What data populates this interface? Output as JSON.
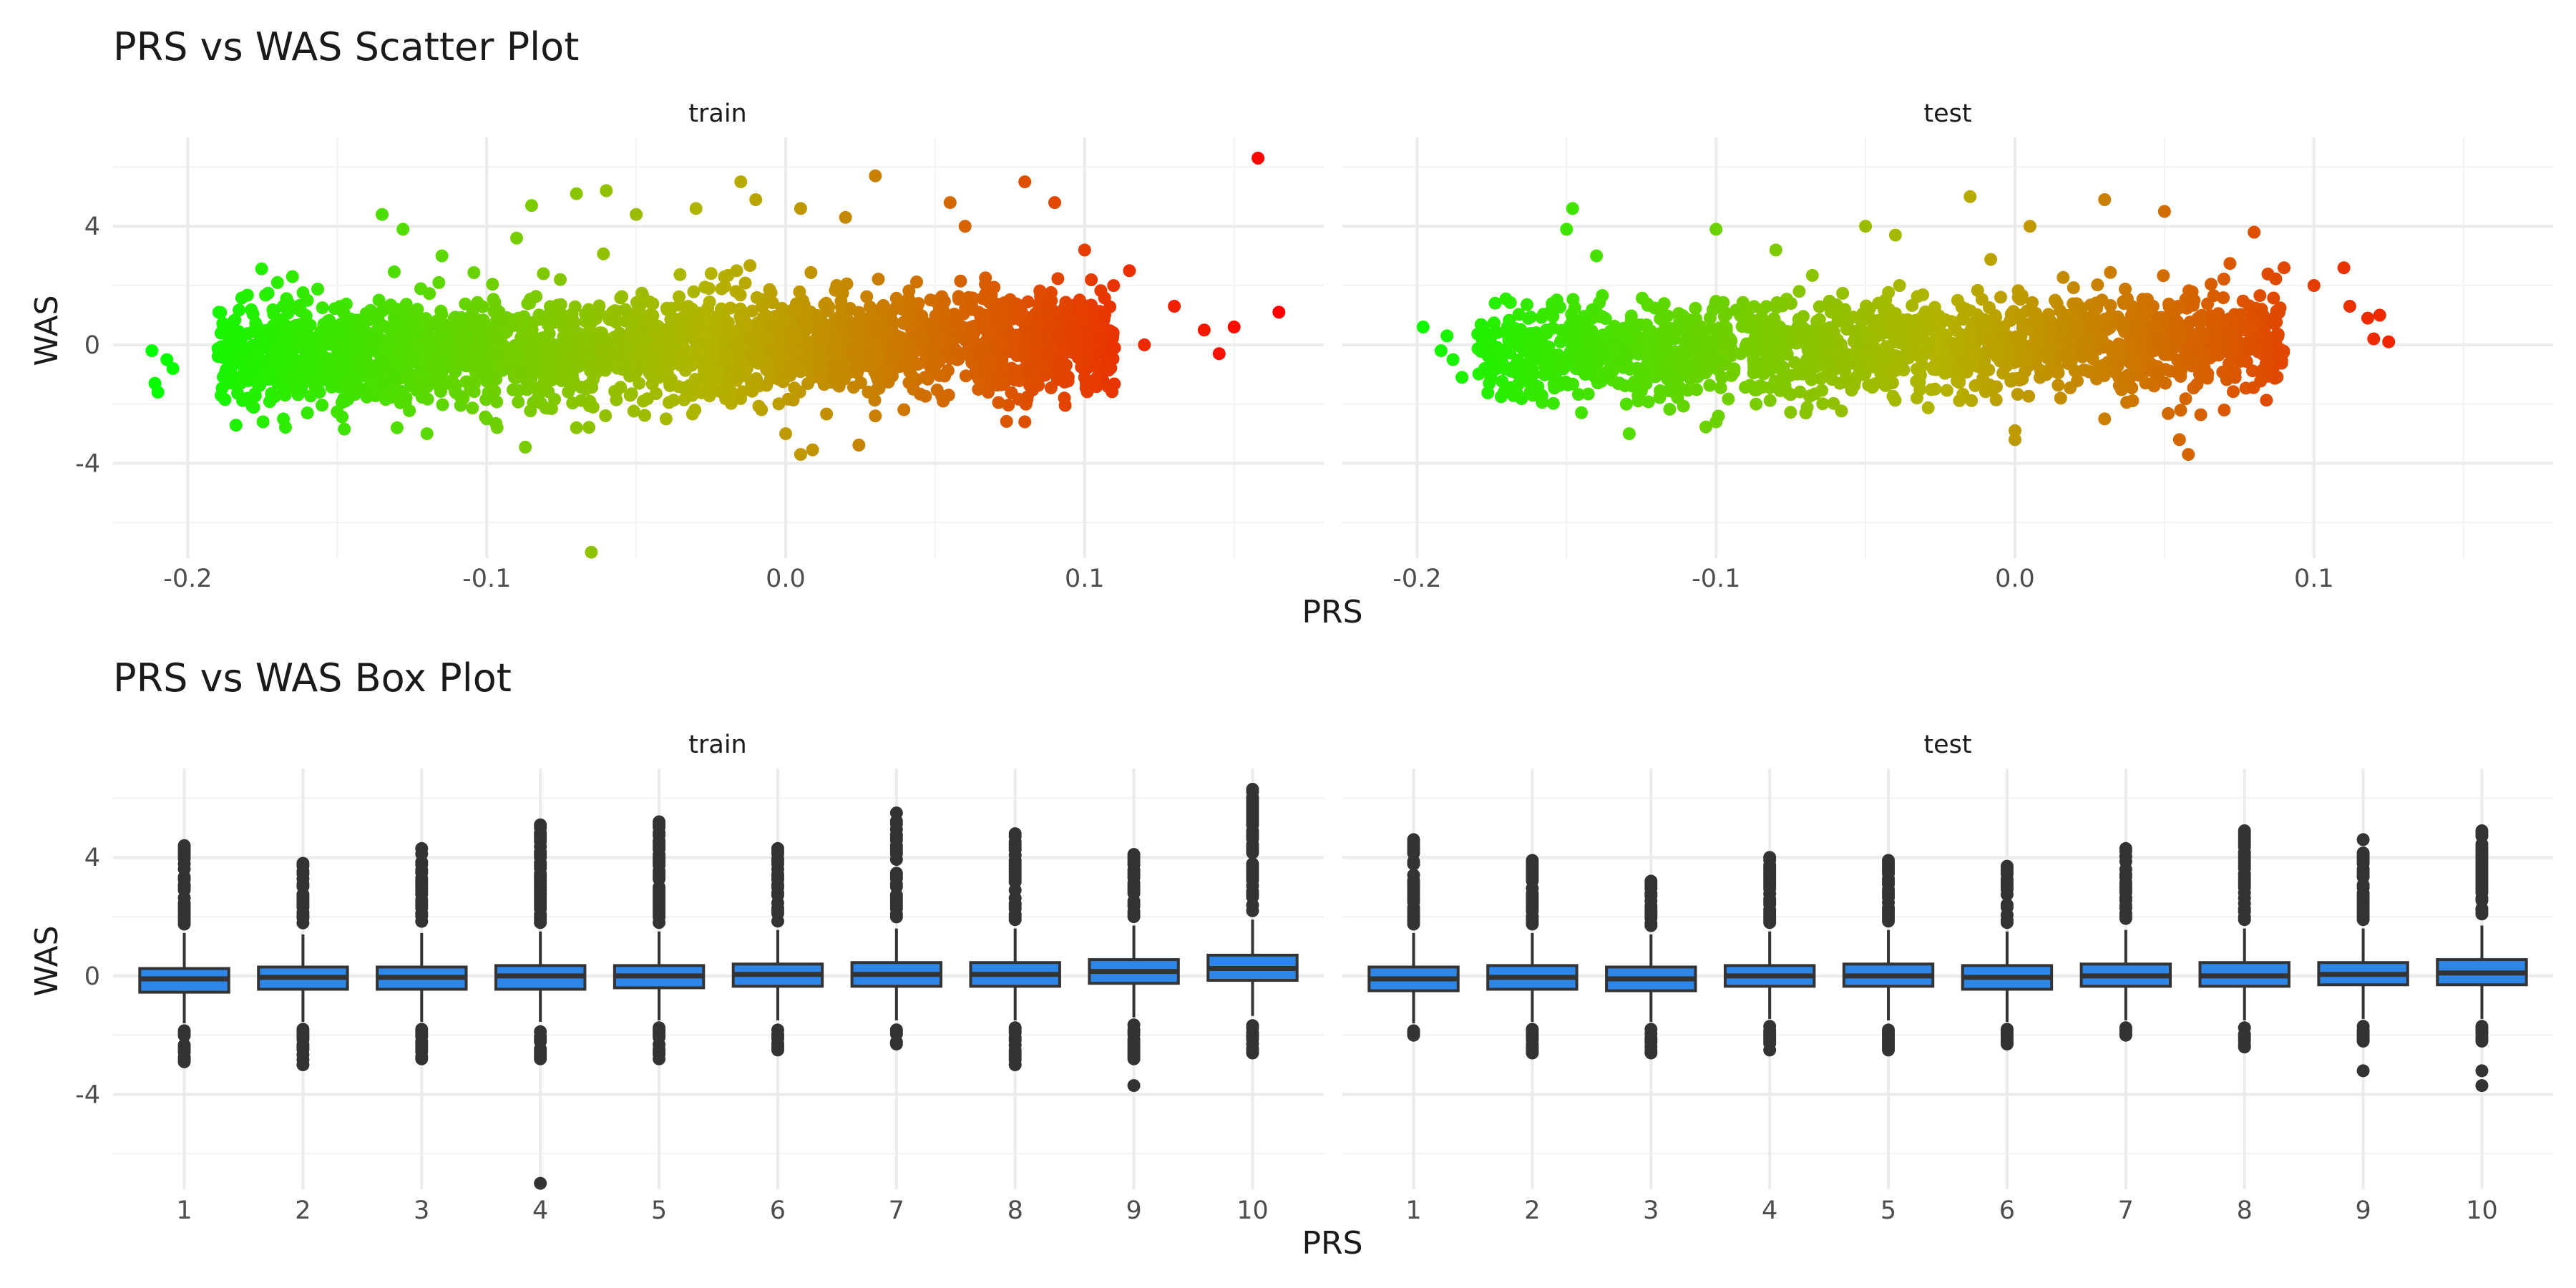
{
  "chart_data": [
    {
      "type": "scatter",
      "title": "PRS vs WAS Scatter Plot",
      "xlabel": "PRS",
      "ylabel": "WAS",
      "facets": [
        "train",
        "test"
      ],
      "xlim": [
        -0.225,
        0.18
      ],
      "ylim": [
        -7.2,
        7.0
      ],
      "x_ticks": [
        -0.2,
        -0.1,
        0.0,
        0.1
      ],
      "x_tick_labels": [
        "-0.2",
        "-0.1",
        "0.0",
        "0.1"
      ],
      "y_ticks": [
        -4,
        0,
        4
      ],
      "y_tick_labels": [
        "-4",
        "0",
        "4"
      ],
      "grid": true,
      "legend": "none",
      "color_scale": {
        "low": "#00ff00",
        "mid": "#b3b300",
        "high": "#ff0000",
        "mapped_to": "PRS"
      },
      "series": [
        {
          "name": "train",
          "cloud": {
            "x_range": [
              -0.19,
              0.11
            ],
            "y_sd": 0.85
          },
          "points": [
            [
              -0.212,
              -0.2
            ],
            [
              -0.211,
              -1.3
            ],
            [
              -0.21,
              -1.6
            ],
            [
              -0.205,
              -0.8
            ],
            [
              -0.207,
              -0.5
            ],
            [
              -0.17,
              2.1
            ],
            [
              -0.165,
              2.3
            ],
            [
              -0.16,
              1.5
            ],
            [
              -0.18,
              -1.8
            ],
            [
              -0.168,
              -2.5
            ],
            [
              -0.135,
              4.4
            ],
            [
              -0.128,
              3.9
            ],
            [
              -0.115,
              3.0
            ],
            [
              -0.09,
              3.6
            ],
            [
              -0.13,
              -2.8
            ],
            [
              -0.12,
              -3.0
            ],
            [
              -0.085,
              4.7
            ],
            [
              -0.07,
              5.1
            ],
            [
              -0.06,
              5.2
            ],
            [
              -0.05,
              4.4
            ],
            [
              -0.03,
              4.6
            ],
            [
              -0.015,
              5.5
            ],
            [
              -0.01,
              4.9
            ],
            [
              0.005,
              4.6
            ],
            [
              0.02,
              4.3
            ],
            [
              0.03,
              5.7
            ],
            [
              0.055,
              4.8
            ],
            [
              0.06,
              4.0
            ],
            [
              0.08,
              5.5
            ],
            [
              0.09,
              4.8
            ],
            [
              0.1,
              3.2
            ],
            [
              0.115,
              2.5
            ],
            [
              0.13,
              1.3
            ],
            [
              0.14,
              0.5
            ],
            [
              0.145,
              -0.3
            ],
            [
              0.15,
              0.6
            ],
            [
              0.158,
              6.3
            ],
            [
              0.165,
              1.1
            ],
            [
              0.11,
              -0.1
            ],
            [
              0.12,
              0.0
            ],
            [
              -0.065,
              -7.0
            ],
            [
              0.005,
              -3.7
            ],
            [
              0.0,
              -3.0
            ],
            [
              -0.07,
              -2.8
            ],
            [
              -0.04,
              -2.5
            ],
            [
              0.03,
              -2.4
            ],
            [
              0.08,
              -2.6
            ],
            [
              0.1,
              -1.1
            ],
            [
              -0.16,
              -2.3
            ],
            [
              -0.1,
              -2.5
            ]
          ]
        },
        {
          "name": "test",
          "cloud": {
            "x_range": [
              -0.18,
              0.09
            ],
            "y_sd": 0.8
          },
          "points": [
            [
              -0.198,
              0.6
            ],
            [
              -0.19,
              0.3
            ],
            [
              -0.188,
              -0.5
            ],
            [
              -0.185,
              -1.1
            ],
            [
              -0.192,
              -0.2
            ],
            [
              -0.148,
              4.6
            ],
            [
              -0.15,
              3.9
            ],
            [
              -0.14,
              3.0
            ],
            [
              -0.1,
              3.9
            ],
            [
              -0.08,
              3.2
            ],
            [
              -0.05,
              4.0
            ],
            [
              -0.04,
              3.7
            ],
            [
              -0.015,
              5.0
            ],
            [
              0.005,
              4.0
            ],
            [
              0.03,
              4.9
            ],
            [
              0.05,
              4.5
            ],
            [
              0.08,
              3.8
            ],
            [
              0.09,
              2.6
            ],
            [
              0.1,
              2.0
            ],
            [
              0.11,
              2.6
            ],
            [
              0.112,
              1.3
            ],
            [
              0.118,
              0.9
            ],
            [
              0.122,
              1.0
            ],
            [
              0.125,
              0.1
            ],
            [
              0.12,
              0.2
            ],
            [
              -0.1,
              -2.6
            ],
            [
              -0.07,
              -2.3
            ],
            [
              0.0,
              -2.9
            ],
            [
              0.0,
              -3.2
            ],
            [
              0.03,
              -2.5
            ],
            [
              0.055,
              -3.2
            ],
            [
              0.058,
              -3.7
            ],
            [
              0.07,
              -2.2
            ],
            [
              -0.13,
              -2.0
            ],
            [
              -0.16,
              -1.6
            ]
          ]
        }
      ]
    },
    {
      "type": "box",
      "title": "PRS vs WAS Box Plot",
      "xlabel": "PRS",
      "ylabel": "WAS",
      "facets": [
        "train",
        "test"
      ],
      "categories": [
        "1",
        "2",
        "3",
        "4",
        "5",
        "6",
        "7",
        "8",
        "9",
        "10"
      ],
      "ylim": [
        -7.2,
        7.0
      ],
      "y_ticks": [
        -4,
        0,
        4
      ],
      "y_tick_labels": [
        "-4",
        "0",
        "4"
      ],
      "box_fill": "#2e86e6",
      "line_color": "#333333",
      "grid": true,
      "series": [
        {
          "name": "train",
          "boxes": [
            {
              "q1": -0.55,
              "med": -0.1,
              "q3": 0.25,
              "lo": -1.6,
              "hi": 1.45,
              "out_hi": 4.4,
              "out_lo": -2.9
            },
            {
              "q1": -0.45,
              "med": -0.05,
              "q3": 0.3,
              "lo": -1.55,
              "hi": 1.4,
              "out_hi": 3.8,
              "out_lo": -3.0
            },
            {
              "q1": -0.45,
              "med": -0.05,
              "q3": 0.3,
              "lo": -1.55,
              "hi": 1.45,
              "out_hi": 4.3,
              "out_lo": -2.8
            },
            {
              "q1": -0.45,
              "med": 0.0,
              "q3": 0.35,
              "lo": -1.55,
              "hi": 1.5,
              "out_hi": 5.1,
              "out_lo": -2.8,
              "extra": [
                -7.0
              ]
            },
            {
              "q1": -0.4,
              "med": 0.0,
              "q3": 0.35,
              "lo": -1.5,
              "hi": 1.5,
              "out_hi": 5.2,
              "out_lo": -2.8
            },
            {
              "q1": -0.35,
              "med": 0.05,
              "q3": 0.4,
              "lo": -1.5,
              "hi": 1.55,
              "out_hi": 4.3,
              "out_lo": -2.5
            },
            {
              "q1": -0.35,
              "med": 0.05,
              "q3": 0.45,
              "lo": -1.5,
              "hi": 1.6,
              "out_hi": 5.5,
              "out_lo": -2.3
            },
            {
              "q1": -0.35,
              "med": 0.05,
              "q3": 0.45,
              "lo": -1.5,
              "hi": 1.6,
              "out_hi": 4.8,
              "out_lo": -3.0
            },
            {
              "q1": -0.25,
              "med": 0.15,
              "q3": 0.55,
              "lo": -1.4,
              "hi": 1.7,
              "out_hi": 4.1,
              "out_lo": -2.8,
              "extra": [
                -3.7
              ]
            },
            {
              "q1": -0.15,
              "med": 0.25,
              "q3": 0.7,
              "lo": -1.35,
              "hi": 1.9,
              "out_hi": 6.3,
              "out_lo": -2.6
            }
          ]
        },
        {
          "name": "test",
          "boxes": [
            {
              "q1": -0.5,
              "med": -0.1,
              "q3": 0.3,
              "lo": -1.6,
              "hi": 1.45,
              "out_hi": 4.6,
              "out_lo": -2.0
            },
            {
              "q1": -0.45,
              "med": -0.05,
              "q3": 0.35,
              "lo": -1.55,
              "hi": 1.45,
              "out_hi": 3.9,
              "out_lo": -2.6
            },
            {
              "q1": -0.5,
              "med": -0.1,
              "q3": 0.3,
              "lo": -1.55,
              "hi": 1.4,
              "out_hi": 3.2,
              "out_lo": -2.6
            },
            {
              "q1": -0.35,
              "med": 0.0,
              "q3": 0.35,
              "lo": -1.45,
              "hi": 1.5,
              "out_hi": 4.0,
              "out_lo": -2.5
            },
            {
              "q1": -0.35,
              "med": 0.0,
              "q3": 0.4,
              "lo": -1.5,
              "hi": 1.55,
              "out_hi": 3.9,
              "out_lo": -2.5
            },
            {
              "q1": -0.45,
              "med": -0.05,
              "q3": 0.35,
              "lo": -1.55,
              "hi": 1.5,
              "out_hi": 3.7,
              "out_lo": -2.3
            },
            {
              "q1": -0.35,
              "med": 0.0,
              "q3": 0.4,
              "lo": -1.5,
              "hi": 1.55,
              "out_hi": 4.3,
              "out_lo": -2.0
            },
            {
              "q1": -0.35,
              "med": 0.0,
              "q3": 0.45,
              "lo": -1.5,
              "hi": 1.6,
              "out_hi": 4.9,
              "out_lo": -2.4
            },
            {
              "q1": -0.3,
              "med": 0.05,
              "q3": 0.45,
              "lo": -1.45,
              "hi": 1.6,
              "out_hi": 4.6,
              "out_lo": -2.2,
              "extra": [
                -3.2
              ]
            },
            {
              "q1": -0.3,
              "med": 0.1,
              "q3": 0.55,
              "lo": -1.45,
              "hi": 1.7,
              "out_hi": 4.9,
              "out_lo": -2.2,
              "extra": [
                -3.2,
                -3.7
              ]
            }
          ]
        }
      ]
    }
  ]
}
